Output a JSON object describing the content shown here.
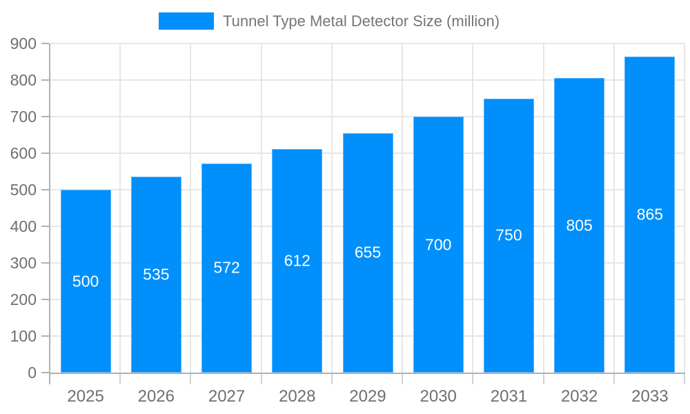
{
  "chart_data": {
    "type": "bar",
    "title": "Tunnel Type Metal Detector Size (million)",
    "categories": [
      "2025",
      "2026",
      "2027",
      "2028",
      "2029",
      "2030",
      "2031",
      "2032",
      "2033"
    ],
    "values": [
      500,
      535,
      572,
      612,
      655,
      700,
      750,
      805,
      865
    ],
    "xlabel": "",
    "ylabel": "",
    "ylim": [
      0,
      900
    ],
    "ytick_step": 100,
    "yticks": [
      0,
      100,
      200,
      300,
      400,
      500,
      600,
      700,
      800,
      900
    ],
    "grid": true,
    "legend_position": "top",
    "bar_value_labels": true
  },
  "colors": {
    "bar": "#008FFB",
    "bar_border": "#5ab4fc",
    "bar_label": "#ffffff",
    "grid": "#e6e6e6",
    "axis": "#b0b0b0",
    "minor_tick": "#d2d2d2",
    "tick_label": "#6f6f6f",
    "legend_text": "#757575"
  }
}
